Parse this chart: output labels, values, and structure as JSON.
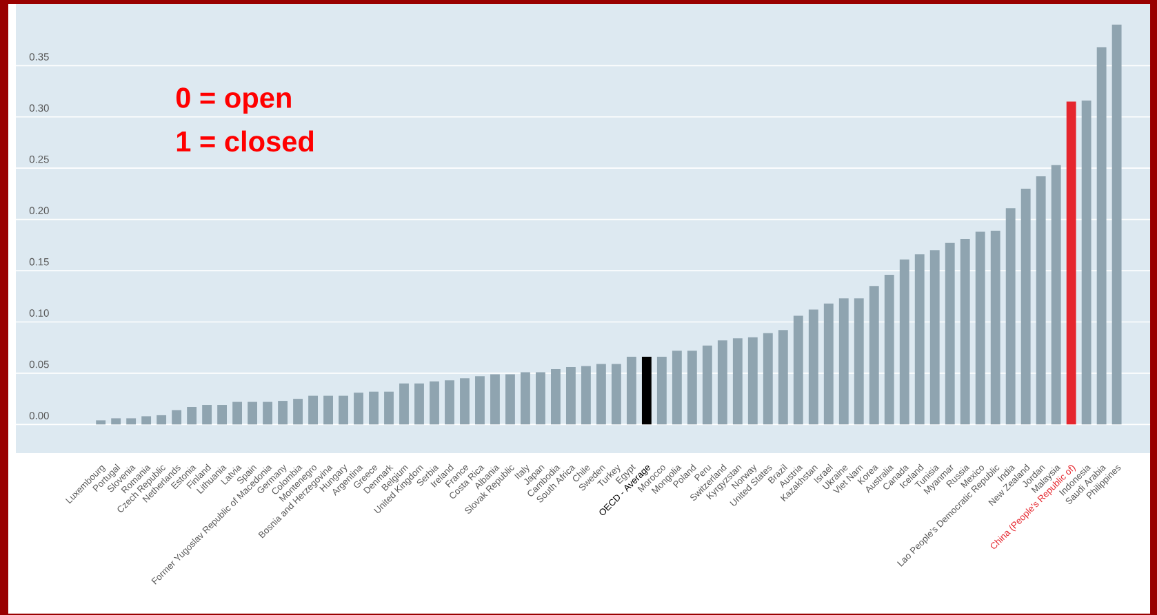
{
  "chart_data": {
    "type": "bar",
    "categories": [
      "Luxembourg",
      "Portugal",
      "Slovenia",
      "Romania",
      "Czech Republic",
      "Netherlands",
      "Estonia",
      "Finland",
      "Lithuania",
      "Latvia",
      "Spain",
      "Former Yugoslav Republic of Macedonia",
      "Germany",
      "Colombia",
      "Montenegro",
      "Bosnia and Herzegovina",
      "Hungary",
      "Argentina",
      "Greece",
      "Denmark",
      "Belgium",
      "United Kingdom",
      "Serbia",
      "Ireland",
      "France",
      "Costa Rica",
      "Albania",
      "Slovak Republic",
      "Italy",
      "Japan",
      "Cambodia",
      "South Africa",
      "Chile",
      "Sweden",
      "Turkey",
      "Egypt",
      "OECD - Average",
      "Morocco",
      "Mongolia",
      "Poland",
      "Peru",
      "Switzerland",
      "Kyrgyzstan",
      "Norway",
      "United States",
      "Brazil",
      "Austria",
      "Kazakhstan",
      "Israel",
      "Ukraine",
      "Viet Nam",
      "Korea",
      "Australia",
      "Canada",
      "Iceland",
      "Tunisia",
      "Myanmar",
      "Russia",
      "Mexico",
      "Lao People's Democratic Republic",
      "India",
      "New Zealand",
      "Jordan",
      "Malaysia",
      "China (People's Republic of)",
      "Indonesia",
      "Saudi Arabia",
      "Philippines"
    ],
    "values": [
      0.004,
      0.006,
      0.006,
      0.008,
      0.009,
      0.014,
      0.017,
      0.019,
      0.019,
      0.022,
      0.022,
      0.022,
      0.023,
      0.025,
      0.028,
      0.028,
      0.028,
      0.031,
      0.032,
      0.032,
      0.04,
      0.04,
      0.042,
      0.043,
      0.045,
      0.047,
      0.049,
      0.049,
      0.051,
      0.051,
      0.054,
      0.056,
      0.057,
      0.059,
      0.059,
      0.066,
      0.066,
      0.066,
      0.072,
      0.072,
      0.077,
      0.082,
      0.084,
      0.085,
      0.089,
      0.092,
      0.106,
      0.112,
      0.118,
      0.123,
      0.123,
      0.135,
      0.146,
      0.161,
      0.166,
      0.17,
      0.177,
      0.181,
      0.188,
      0.189,
      0.211,
      0.23,
      0.242,
      0.253,
      0.315,
      0.316,
      0.368,
      0.39
    ],
    "colors": [
      "#8fa4b0",
      "#8fa4b0",
      "#8fa4b0",
      "#8fa4b0",
      "#8fa4b0",
      "#8fa4b0",
      "#8fa4b0",
      "#8fa4b0",
      "#8fa4b0",
      "#8fa4b0",
      "#8fa4b0",
      "#8fa4b0",
      "#8fa4b0",
      "#8fa4b0",
      "#8fa4b0",
      "#8fa4b0",
      "#8fa4b0",
      "#8fa4b0",
      "#8fa4b0",
      "#8fa4b0",
      "#8fa4b0",
      "#8fa4b0",
      "#8fa4b0",
      "#8fa4b0",
      "#8fa4b0",
      "#8fa4b0",
      "#8fa4b0",
      "#8fa4b0",
      "#8fa4b0",
      "#8fa4b0",
      "#8fa4b0",
      "#8fa4b0",
      "#8fa4b0",
      "#8fa4b0",
      "#8fa4b0",
      "#8fa4b0",
      "#000000",
      "#8fa4b0",
      "#8fa4b0",
      "#8fa4b0",
      "#8fa4b0",
      "#8fa4b0",
      "#8fa4b0",
      "#8fa4b0",
      "#8fa4b0",
      "#8fa4b0",
      "#8fa4b0",
      "#8fa4b0",
      "#8fa4b0",
      "#8fa4b0",
      "#8fa4b0",
      "#8fa4b0",
      "#8fa4b0",
      "#8fa4b0",
      "#8fa4b0",
      "#8fa4b0",
      "#8fa4b0",
      "#8fa4b0",
      "#8fa4b0",
      "#8fa4b0",
      "#8fa4b0",
      "#8fa4b0",
      "#8fa4b0",
      "#8fa4b0",
      "#e5262e",
      "#8fa4b0",
      "#8fa4b0",
      "#8fa4b0"
    ],
    "ylim": [
      -0.028,
      0.41
    ],
    "yticks": [
      {
        "value": 0,
        "label": "0.00"
      },
      0.05,
      {
        "value": 0.1,
        "label": "0.10"
      },
      0.15,
      {
        "value": 0.2,
        "label": "0.20"
      },
      0.25,
      {
        "value": 0.3,
        "label": "0.30"
      },
      0.35
    ],
    "grid": "y",
    "annotations": [
      "0 = open",
      "1 = closed"
    ]
  }
}
